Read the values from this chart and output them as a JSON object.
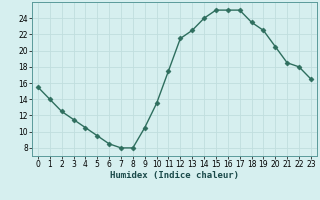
{
  "x": [
    0,
    1,
    2,
    3,
    4,
    5,
    6,
    7,
    8,
    9,
    10,
    11,
    12,
    13,
    14,
    15,
    16,
    17,
    18,
    19,
    20,
    21,
    22,
    23
  ],
  "y": [
    15.5,
    14.0,
    12.5,
    11.5,
    10.5,
    9.5,
    8.5,
    8.0,
    8.0,
    10.5,
    13.5,
    17.5,
    21.5,
    22.5,
    24.0,
    25.0,
    25.0,
    25.0,
    23.5,
    22.5,
    20.5,
    18.5,
    18.0,
    16.5
  ],
  "line_color": "#2e6e5e",
  "marker": "D",
  "markersize": 2.5,
  "linewidth": 1.0,
  "bg_color": "#d6efef",
  "grid_color": "#c0dede",
  "xlabel": "Humidex (Indice chaleur)",
  "xlim": [
    -0.5,
    23.5
  ],
  "ylim": [
    7,
    26
  ],
  "yticks": [
    8,
    10,
    12,
    14,
    16,
    18,
    20,
    22,
    24
  ],
  "xticks": [
    0,
    1,
    2,
    3,
    4,
    5,
    6,
    7,
    8,
    9,
    10,
    11,
    12,
    13,
    14,
    15,
    16,
    17,
    18,
    19,
    20,
    21,
    22,
    23
  ],
  "xlabel_fontsize": 6.5,
  "tick_fontsize": 5.5
}
